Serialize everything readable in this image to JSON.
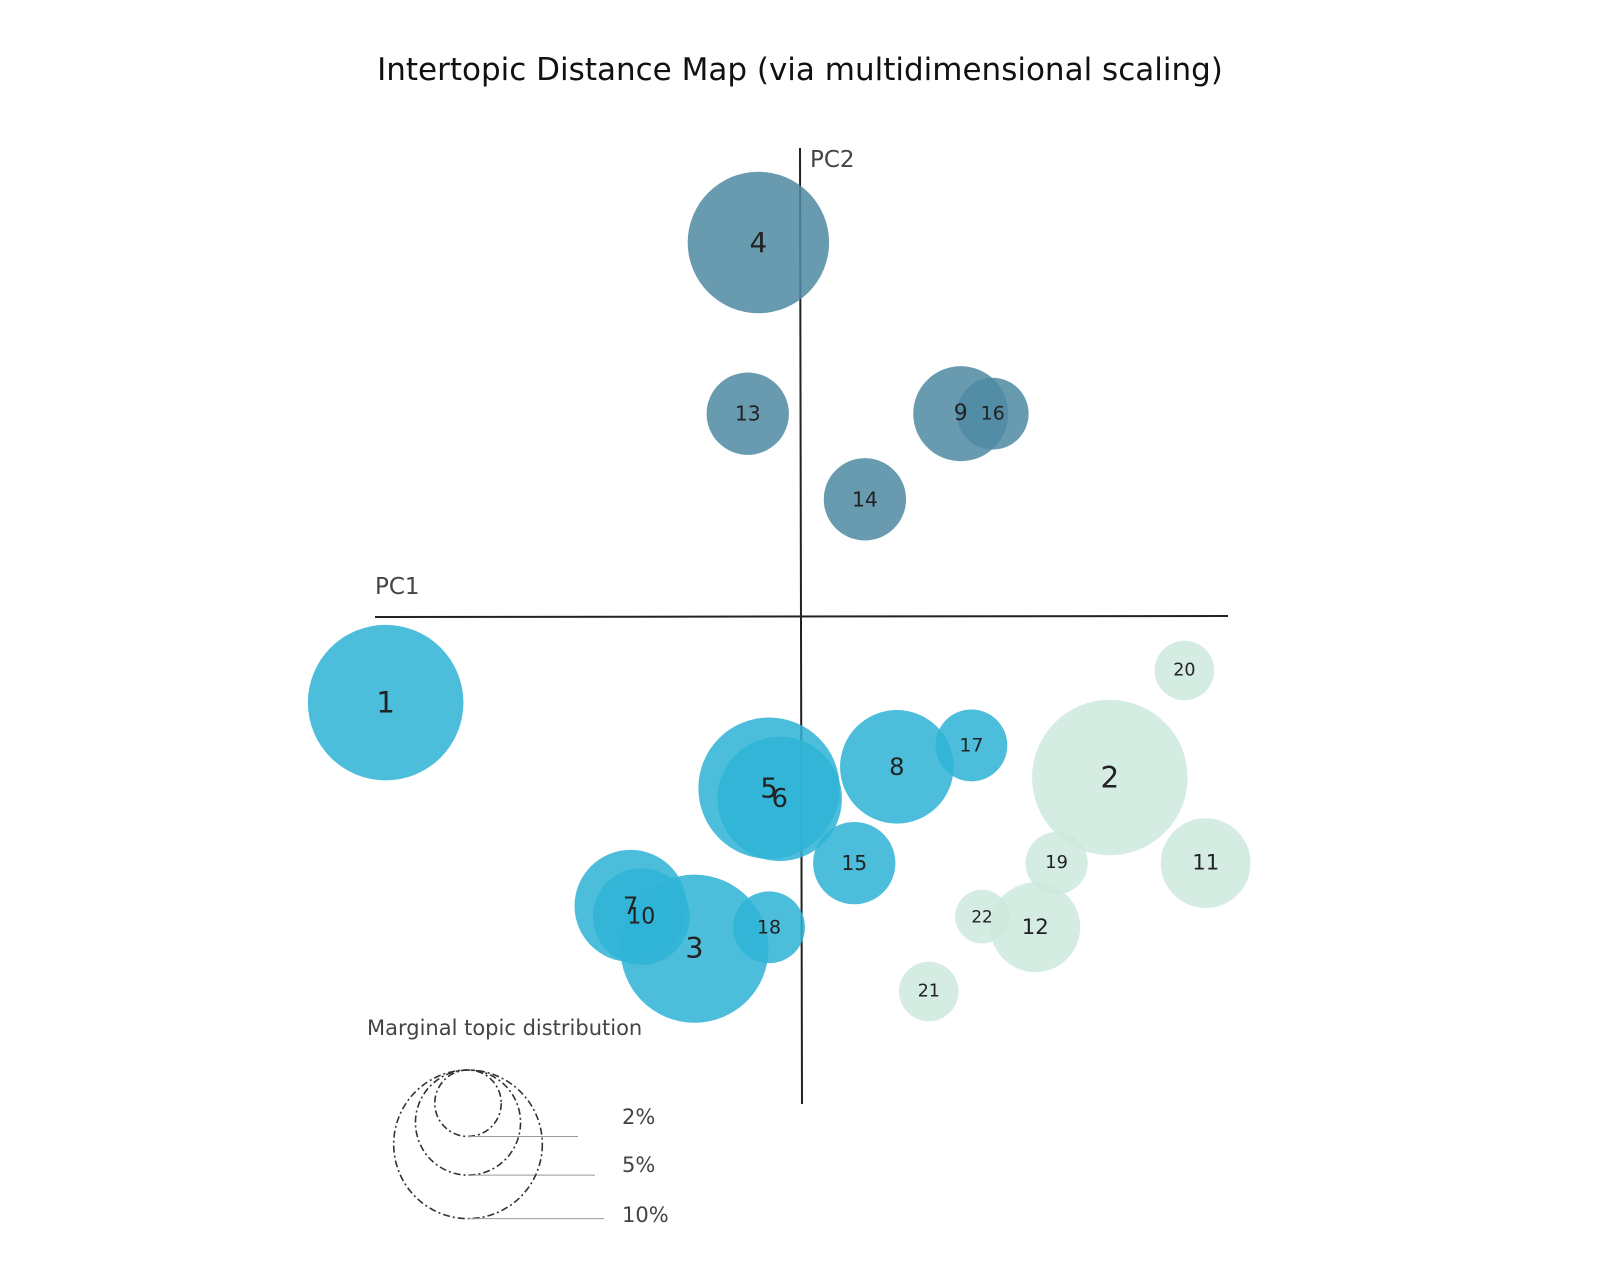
{
  "chart_data": {
    "type": "scatter",
    "title": "Intertopic Distance Map (via multidimensional scaling)",
    "xlabel": "PC1",
    "ylabel": "PC2",
    "colors": {
      "group_blue": "#2fb3d6",
      "group_dark": "#4f8aa3",
      "group_green": "#cce9dd"
    },
    "topics": [
      {
        "label": "1",
        "x": -0.39,
        "y": -0.08,
        "size": 7.5,
        "group": "group_blue"
      },
      {
        "label": "2",
        "x": 0.29,
        "y": -0.15,
        "size": 7.5,
        "group": "group_green"
      },
      {
        "label": "3",
        "x": -0.1,
        "y": -0.31,
        "size": 6.8,
        "group": "group_blue"
      },
      {
        "label": "4",
        "x": -0.04,
        "y": 0.35,
        "size": 6.2,
        "group": "group_dark"
      },
      {
        "label": "5",
        "x": -0.03,
        "y": -0.16,
        "size": 6.2,
        "group": "group_blue"
      },
      {
        "label": "6",
        "x": -0.02,
        "y": -0.17,
        "size": 4.8,
        "group": "group_blue"
      },
      {
        "label": "7",
        "x": -0.16,
        "y": -0.27,
        "size": 3.9,
        "group": "group_blue"
      },
      {
        "label": "8",
        "x": 0.09,
        "y": -0.14,
        "size": 4.0,
        "group": "group_blue"
      },
      {
        "label": "9",
        "x": 0.15,
        "y": 0.19,
        "size": 2.8,
        "group": "group_dark"
      },
      {
        "label": "10",
        "x": -0.15,
        "y": -0.28,
        "size": 2.9,
        "group": "group_blue"
      },
      {
        "label": "11",
        "x": 0.38,
        "y": -0.23,
        "size": 2.5,
        "group": "group_green"
      },
      {
        "label": "12",
        "x": 0.22,
        "y": -0.29,
        "size": 2.5,
        "group": "group_green"
      },
      {
        "label": "13",
        "x": -0.05,
        "y": 0.19,
        "size": 2.1,
        "group": "group_dark"
      },
      {
        "label": "14",
        "x": 0.06,
        "y": 0.11,
        "size": 2.1,
        "group": "group_dark"
      },
      {
        "label": "15",
        "x": 0.05,
        "y": -0.23,
        "size": 2.1,
        "group": "group_blue"
      },
      {
        "label": "16",
        "x": 0.18,
        "y": 0.19,
        "size": 1.6,
        "group": "group_dark"
      },
      {
        "label": "17",
        "x": 0.16,
        "y": -0.12,
        "size": 1.6,
        "group": "group_blue"
      },
      {
        "label": "18",
        "x": -0.03,
        "y": -0.29,
        "size": 1.6,
        "group": "group_blue"
      },
      {
        "label": "19",
        "x": 0.24,
        "y": -0.23,
        "size": 1.2,
        "group": "group_green"
      },
      {
        "label": "20",
        "x": 0.36,
        "y": -0.05,
        "size": 1.1,
        "group": "group_green"
      },
      {
        "label": "21",
        "x": 0.12,
        "y": -0.35,
        "size": 1.1,
        "group": "group_green"
      },
      {
        "label": "22",
        "x": 0.17,
        "y": -0.28,
        "size": 0.9,
        "group": "group_green"
      }
    ],
    "legend": {
      "title": "Marginal topic distribution",
      "items": [
        {
          "label": "2%",
          "size": 2
        },
        {
          "label": "5%",
          "size": 5
        },
        {
          "label": "10%",
          "size": 10
        }
      ]
    }
  }
}
